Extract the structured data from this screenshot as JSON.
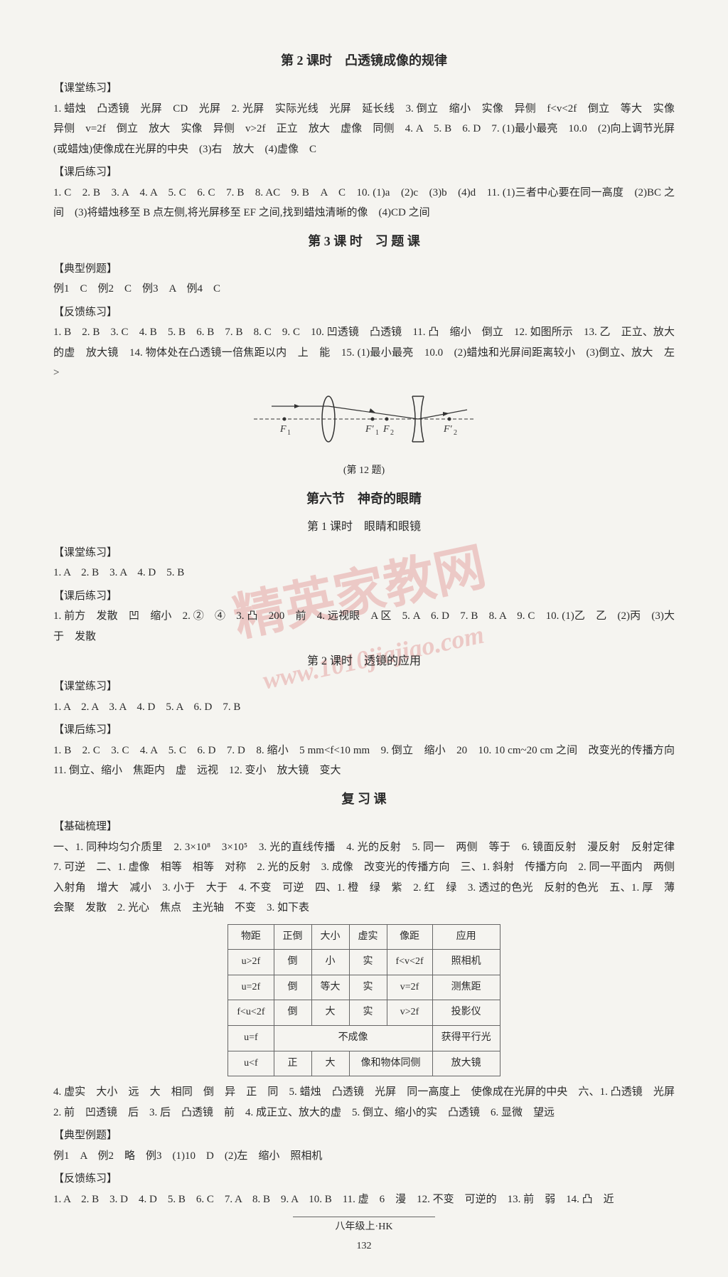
{
  "watermark": {
    "line1": "精英家教网",
    "line2": "www.1010jiajiao.com"
  },
  "s1": {
    "title": "第 2 课时　凸透镜成像的规律",
    "label1": "【课堂练习】",
    "p1": "1. 蜡烛　凸透镜　光屏　CD　光屏　2. 光屏　实际光线　光屏　延长线　3. 倒立　缩小　实像　异侧　f<v<2f　倒立　等大　实像　异侧　v=2f　倒立　放大　实像　异侧　v>2f　正立　放大　虚像　同侧　4. A　5. B　6. D　7. (1)最小最亮　10.0　(2)向上调节光屏(或蜡烛)使像成在光屏的中央　(3)右　放大　(4)虚像　C",
    "label2": "【课后练习】",
    "p2": "1. C　2. B　3. A　4. A　5. C　6. C　7. B　8. AC　9. B　A　C　10. (1)a　(2)c　(3)b　(4)d　11. (1)三者中心要在同一高度　(2)BC 之间　(3)将蜡烛移至 B 点左侧,将光屏移至 EF 之间,找到蜡烛清晰的像　(4)CD 之间"
  },
  "s2": {
    "title": "第 3 课 时　习 题 课",
    "label1": "【典型例题】",
    "p1": "例1　C　例2　C　例3　A　例4　C",
    "label2": "【反馈练习】",
    "p2": "1. B　2. B　3. C　4. B　5. B　6. B　7. B　8. C　9. C　10. 凹透镜　凸透镜　11. 凸　缩小　倒立　12. 如图所示　13. 乙　正立、放大的虚　放大镜　14. 物体处在凸透镜一倍焦距以内　上　能　15. (1)最小最亮　10.0　(2)蜡烛和光屏间距离较小　(3)倒立、放大　左　>",
    "caption": "(第 12 题)"
  },
  "s3": {
    "title": "第六节　神奇的眼睛",
    "subtitle": "第 1 课时　眼睛和眼镜",
    "label1": "【课堂练习】",
    "p1": "1. A　2. B　3. A　4. D　5. B",
    "label2": "【课后练习】",
    "p2": "1. 前方　发散　凹　缩小　2. ②　④　3. 凸　200　前　4. 远视眼　A 区　5. A　6. D　7. B　8. A　9. C　10. (1)乙　乙　(2)丙　(3)大于　发散"
  },
  "s4": {
    "subtitle": "第 2 课时　透镜的应用",
    "label1": "【课堂练习】",
    "p1": "1. A　2. A　3. A　4. D　5. A　6. D　7. B",
    "label2": "【课后练习】",
    "p2": "1. B　2. C　3. C　4. A　5. C　6. D　7. D　8. 缩小　5 mm<f<10 mm　9. 倒立　缩小　20　10. 10 cm~20 cm 之间　改变光的传播方向　11. 倒立、缩小　焦距内　虚　远视　12. 变小　放大镜　变大"
  },
  "s5": {
    "title": "复 习 课",
    "label1": "【基础梳理】",
    "p1": "一、1. 同种均匀介质里　2. 3×10⁸　3×10⁵　3. 光的直线传播　4. 光的反射　5. 同一　两侧　等于　6. 镜面反射　漫反射　反射定律　7. 可逆　二、1. 虚像　相等　相等　对称　2. 光的反射　3. 成像　改变光的传播方向　三、1. 斜射　传播方向　2. 同一平面内　两侧　入射角　增大　减小　3. 小于　大于　4. 不变　可逆　四、1. 橙　绿　紫　2. 红　绿　3. 透过的色光　反射的色光　五、1. 厚　薄　会聚　发散　2. 光心　焦点　主光轴　不变　3. 如下表",
    "p2": "4. 虚实　大小　远　大　相同　倒　异　正　同　5. 蜡烛　凸透镜　光屏　同一高度上　使像成在光屏的中央　六、1. 凸透镜　光屏　2. 前　凹透镜　后　3. 后　凸透镜　前　4. 成正立、放大的虚　5. 倒立、缩小的实　凸透镜　6. 显微　望远",
    "label2": "【典型例题】",
    "p3": "例1　A　例2　略　例3　(1)10　D　(2)左　缩小　照相机",
    "label3": "【反馈练习】",
    "p4": "1. A　2. B　3. D　4. D　5. B　6. C　7. A　8. B　9. A　10. B　11. 虚　6　漫　12. 不变　可逆的　13. 前　弱　14. 凸　近"
  },
  "table": {
    "headers": [
      "物距",
      "正倒",
      "大小",
      "虚实",
      "像距",
      "应用"
    ],
    "rows": [
      [
        "u>2f",
        "倒",
        "小",
        "实",
        "f<v<2f",
        "照相机"
      ],
      [
        "u=2f",
        "倒",
        "等大",
        "实",
        "v=2f",
        "测焦距"
      ],
      [
        "f<u<2f",
        "倒",
        "大",
        "实",
        "v>2f",
        "投影仪"
      ],
      [
        "u=f",
        {
          "colspan": 4,
          "text": "不成像"
        },
        "获得平行光"
      ],
      [
        "u<f",
        "正",
        "大",
        {
          "colspan": 2,
          "text": "像和物体同侧"
        },
        "放大镜"
      ]
    ]
  },
  "footer": {
    "text": "八年级上·HK",
    "page": "132"
  },
  "diagram": {
    "stroke": "#333",
    "labels": {
      "F1": "F₁",
      "F1p": "F'₁",
      "F2": "F₂",
      "F2p": "F'₂"
    }
  }
}
